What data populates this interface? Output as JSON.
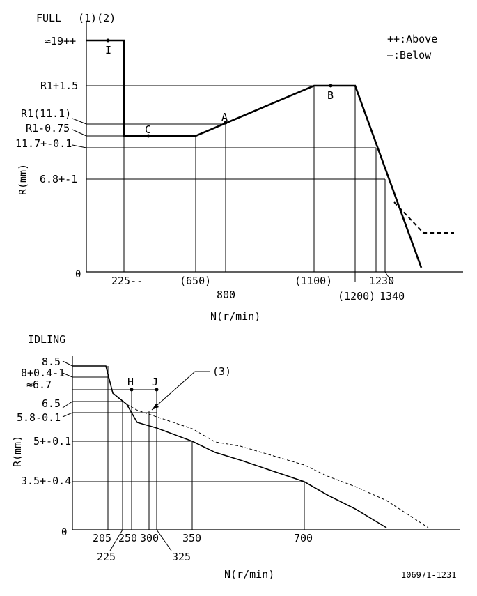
{
  "full": {
    "title": "FULL",
    "note": "(1)(2)",
    "legend_above": "++:Above",
    "legend_below": "—:Below",
    "y_axis_label": "R(mm)",
    "x_axis_label": "N(r/min)",
    "origin_label": "0",
    "y_labels": {
      "top": "≈19++",
      "r1_plus": "R1+1.5",
      "r1": "R1(11.1)",
      "r1_minus": "R1-0.75",
      "v117": "11.7+-0.1",
      "v68": "6.8+-1"
    },
    "x_labels": {
      "n225": "225--",
      "n650": "(650)",
      "n800": "800",
      "n1100": "(1100)",
      "n1200": "(1200)",
      "n1230": "1230",
      "n1340": "1340"
    },
    "points": {
      "I": "I",
      "A": "A",
      "B": "B",
      "C": "C"
    }
  },
  "idling": {
    "title": "IDLING",
    "y_axis_label": "R(mm)",
    "x_axis_label": "N(r/min)",
    "origin_label": "0",
    "callout": "(3)",
    "y_labels": {
      "v85": "8.5",
      "v8": "8+0.4-1",
      "v67": "≈6.7",
      "v65": "6.5",
      "v58": "5.8-0.1",
      "v5": "5+-0.1",
      "v35": "3.5+-0.4"
    },
    "x_labels": {
      "n205": "205",
      "n225": "225",
      "n250": "250",
      "n300": "300",
      "n325": "325",
      "n350": "350",
      "n700": "700"
    },
    "points": {
      "H": "H",
      "J": "J"
    }
  },
  "footer": {
    "drawing_id": "106971-1231"
  },
  "colors": {
    "ink": "#000000",
    "background": "#ffffff"
  }
}
